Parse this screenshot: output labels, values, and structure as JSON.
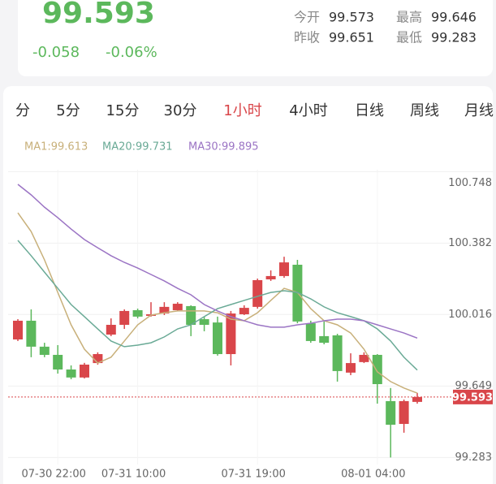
{
  "header": {
    "price": "99.593",
    "change": "-0.058",
    "change_pct": "-0.06%",
    "stats": [
      {
        "label": "今开",
        "value": "99.573"
      },
      {
        "label": "最高",
        "value": "99.646"
      },
      {
        "label": "昨收",
        "value": "99.651"
      },
      {
        "label": "最低",
        "value": "99.283"
      }
    ]
  },
  "tabs": {
    "items": [
      "分",
      "5分",
      "15分",
      "30分",
      "1小时",
      "4小时",
      "日线",
      "周线",
      "月线"
    ],
    "active": 4
  },
  "chart_data": {
    "type": "candlestick",
    "categories": [
      null,
      null,
      null,
      "07-30 22:00",
      null,
      null,
      null,
      null,
      null,
      "07-31 10:00",
      null,
      null,
      null,
      null,
      null,
      null,
      null,
      null,
      "07-31 19:00",
      null,
      null,
      null,
      null,
      null,
      null,
      null,
      null,
      "08-01 04:00",
      null,
      null,
      null
    ],
    "open": [
      99.888,
      99.984,
      99.851,
      99.809,
      99.734,
      99.693,
      99.767,
      99.913,
      99.963,
      100.038,
      100.009,
      100.021,
      100.038,
      100.059,
      99.992,
      99.975,
      99.813,
      100.017,
      100.055,
      100.196,
      100.213,
      100.271,
      99.971,
      99.905,
      99.909,
      99.718,
      99.772,
      99.809,
      99.572,
      99.455,
      99.568
    ],
    "high": [
      99.992,
      100.042,
      99.871,
      99.859,
      99.755,
      99.768,
      99.822,
      99.996,
      100.042,
      100.046,
      100.079,
      100.079,
      100.079,
      100.063,
      100.005,
      100.005,
      100.034,
      100.063,
      100.2,
      100.242,
      100.312,
      100.296,
      99.984,
      99.98,
      99.917,
      99.817,
      99.822,
      99.813,
      99.639,
      99.58,
      99.614
    ],
    "low": [
      99.88,
      99.797,
      99.797,
      99.713,
      99.684,
      99.688,
      99.759,
      99.905,
      99.942,
      99.996,
      100.005,
      100.013,
      100.034,
      99.905,
      99.93,
      99.805,
      99.755,
      100.013,
      100.046,
      100.188,
      100.204,
      99.971,
      99.871,
      99.863,
      99.672,
      99.705,
      99.767,
      99.559,
      99.283,
      99.41,
      99.559
    ],
    "close": [
      99.984,
      99.851,
      99.809,
      99.734,
      99.693,
      99.759,
      99.813,
      99.963,
      100.034,
      100.005,
      100.017,
      100.055,
      100.071,
      99.963,
      99.963,
      99.813,
      100.021,
      100.05,
      100.192,
      100.213,
      100.283,
      99.98,
      99.88,
      99.871,
      99.726,
      99.767,
      99.809,
      99.659,
      99.451,
      99.572,
      99.593
    ],
    "up_color": "#d9464a",
    "down_color": "#5cb85c",
    "series": [
      {
        "name": "MA1:99.613",
        "color": "#c8b07a",
        "values": [
          100.537,
          100.441,
          100.296,
          100.129,
          99.963,
          99.838,
          99.767,
          99.797,
          99.88,
          99.963,
          100.013,
          100.025,
          100.034,
          100.034,
          100.034,
          100.025,
          99.992,
          99.984,
          100.025,
          100.088,
          100.15,
          100.129,
          100.046,
          99.984,
          99.963,
          99.921,
          99.838,
          99.722,
          99.672,
          99.639,
          99.613
        ]
      },
      {
        "name": "MA20:99.731",
        "color": "#6aaa96",
        "values": [
          100.396,
          100.317,
          100.233,
          100.15,
          100.067,
          100.005,
          99.942,
          99.88,
          99.851,
          99.859,
          99.871,
          99.901,
          99.942,
          99.963,
          100.005,
          100.046,
          100.067,
          100.088,
          100.109,
          100.129,
          100.138,
          100.129,
          100.096,
          100.055,
          100.025,
          100.005,
          99.984,
          99.942,
          99.88,
          99.797,
          99.731
        ]
      },
      {
        "name": "MA30:99.895",
        "color": "#9b74c4",
        "values": [
          100.683,
          100.629,
          100.566,
          100.512,
          100.454,
          100.4,
          100.358,
          100.317,
          100.283,
          100.254,
          100.221,
          100.188,
          100.15,
          100.117,
          100.067,
          100.034,
          100.005,
          99.984,
          99.963,
          99.951,
          99.951,
          99.963,
          99.971,
          99.984,
          99.992,
          99.992,
          99.984,
          99.963,
          99.942,
          99.921,
          99.895
        ]
      }
    ],
    "last_price": 99.593,
    "ylim": [
      99.247,
      100.758
    ],
    "yticks": [
      100.748,
      100.382,
      100.016,
      99.649,
      99.283
    ],
    "grid": true
  }
}
